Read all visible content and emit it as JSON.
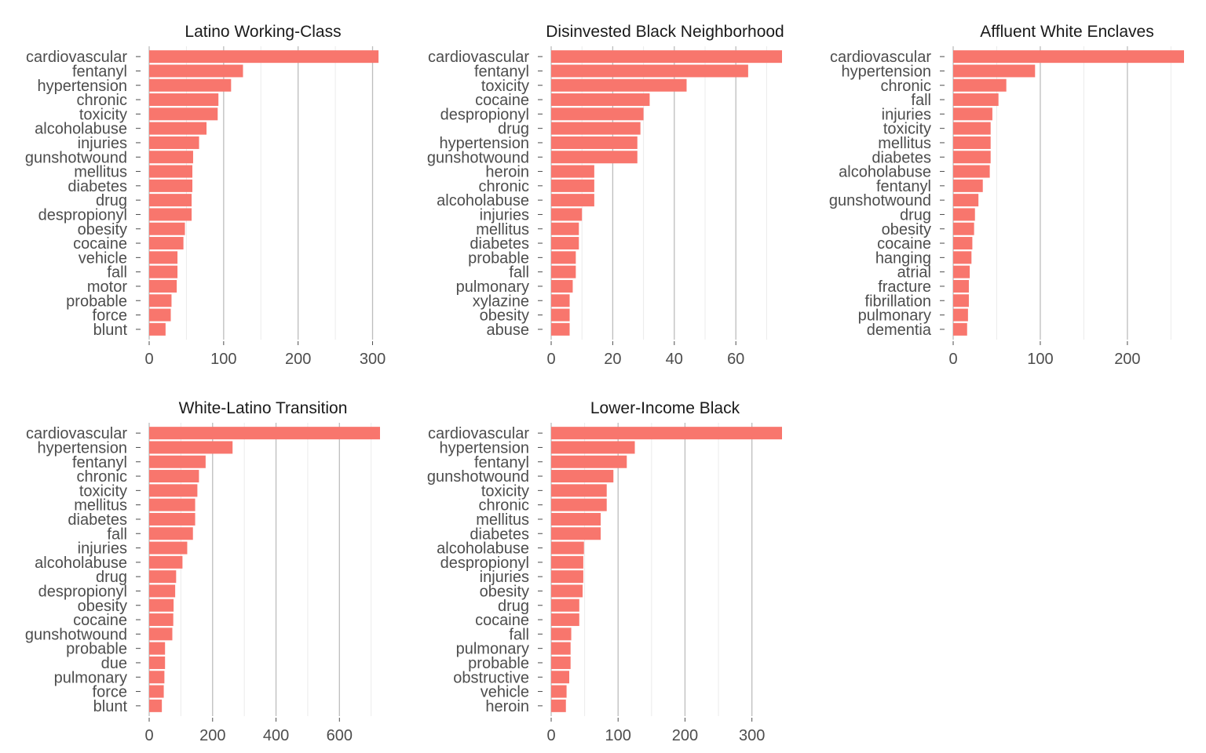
{
  "colors": {
    "bar": "#F8766D",
    "major_grid": "#bdbdbd",
    "minor_grid": "#ebebeb",
    "tick": "#4d4d4d"
  },
  "chart_data": [
    {
      "type": "bar",
      "orientation": "horizontal",
      "title": "Latino Working-Class",
      "xlabel": "",
      "ylabel": "",
      "categories": [
        "cardiovascular",
        "fentanyl",
        "hypertension",
        "chronic",
        "toxicity",
        "alcoholabuse",
        "injuries",
        "gunshotwound",
        "mellitus",
        "diabetes",
        "drug",
        "despropionyl",
        "obesity",
        "cocaine",
        "vehicle",
        "fall",
        "motor",
        "probable",
        "force",
        "blunt"
      ],
      "values": [
        308,
        126,
        110,
        93,
        92,
        77,
        67,
        59,
        58,
        58,
        57,
        57,
        48,
        46,
        38,
        38,
        37,
        30,
        29,
        22
      ],
      "xlim": [
        0,
        310
      ],
      "xticks": [
        0,
        100,
        200,
        300
      ],
      "minor_xticks": [
        50,
        150,
        250
      ],
      "grid": true
    },
    {
      "type": "bar",
      "orientation": "horizontal",
      "title": "Disinvested Black Neighborhood",
      "xlabel": "",
      "ylabel": "",
      "categories": [
        "cardiovascular",
        "fentanyl",
        "toxicity",
        "cocaine",
        "despropionyl",
        "drug",
        "hypertension",
        "gunshotwound",
        "heroin",
        "chronic",
        "alcoholabuse",
        "injuries",
        "mellitus",
        "diabetes",
        "probable",
        "fall",
        "pulmonary",
        "xylazine",
        "obesity",
        "abuse"
      ],
      "values": [
        75,
        64,
        44,
        32,
        30,
        29,
        28,
        28,
        14,
        14,
        14,
        10,
        9,
        9,
        8,
        8,
        7,
        6,
        6,
        6
      ],
      "xlim": [
        0,
        75
      ],
      "xticks": [
        0,
        20,
        40,
        60
      ],
      "minor_xticks": [
        10,
        30,
        50,
        70
      ],
      "grid": true
    },
    {
      "type": "bar",
      "orientation": "horizontal",
      "title": "Affluent White Enclaves",
      "xlabel": "",
      "ylabel": "",
      "categories": [
        "cardiovascular",
        "hypertension",
        "chronic",
        "fall",
        "injuries",
        "toxicity",
        "mellitus",
        "diabetes",
        "alcoholabuse",
        "fentanyl",
        "gunshotwound",
        "drug",
        "obesity",
        "cocaine",
        "hanging",
        "atrial",
        "fracture",
        "fibrillation",
        "pulmonary",
        "dementia"
      ],
      "values": [
        265,
        94,
        61,
        52,
        45,
        43,
        43,
        43,
        42,
        34,
        29,
        25,
        24,
        22,
        21,
        19,
        18,
        18,
        17,
        16
      ],
      "xlim": [
        0,
        265
      ],
      "xticks": [
        0,
        100,
        200
      ],
      "minor_xticks": [
        50,
        150,
        250
      ],
      "grid": true
    },
    {
      "type": "bar",
      "orientation": "horizontal",
      "title": "White-Latino Transition",
      "xlabel": "",
      "ylabel": "",
      "categories": [
        "cardiovascular",
        "hypertension",
        "fentanyl",
        "chronic",
        "toxicity",
        "mellitus",
        "diabetes",
        "fall",
        "injuries",
        "alcoholabuse",
        "drug",
        "despropionyl",
        "obesity",
        "cocaine",
        "gunshotwound",
        "probable",
        "due",
        "pulmonary",
        "force",
        "blunt"
      ],
      "values": [
        728,
        263,
        178,
        157,
        152,
        145,
        145,
        138,
        120,
        105,
        85,
        82,
        77,
        76,
        73,
        50,
        50,
        48,
        46,
        40
      ],
      "xlim": [
        0,
        728
      ],
      "xticks": [
        0,
        200,
        400,
        600
      ],
      "minor_xticks": [
        100,
        300,
        500,
        700
      ],
      "grid": true
    },
    {
      "type": "bar",
      "orientation": "horizontal",
      "title": "Lower-Income Black",
      "xlabel": "",
      "ylabel": "",
      "categories": [
        "cardiovascular",
        "hypertension",
        "fentanyl",
        "gunshotwound",
        "toxicity",
        "chronic",
        "mellitus",
        "diabetes",
        "alcoholabuse",
        "despropionyl",
        "injuries",
        "obesity",
        "drug",
        "cocaine",
        "fall",
        "pulmonary",
        "probable",
        "obstructive",
        "vehicle",
        "heroin"
      ],
      "values": [
        345,
        125,
        113,
        93,
        83,
        83,
        74,
        74,
        49,
        48,
        48,
        47,
        42,
        42,
        30,
        29,
        29,
        27,
        23,
        22
      ],
      "xlim": [
        0,
        345
      ],
      "xticks": [
        0,
        100,
        200,
        300
      ],
      "minor_xticks": [
        50,
        150,
        250
      ],
      "grid": true
    }
  ]
}
